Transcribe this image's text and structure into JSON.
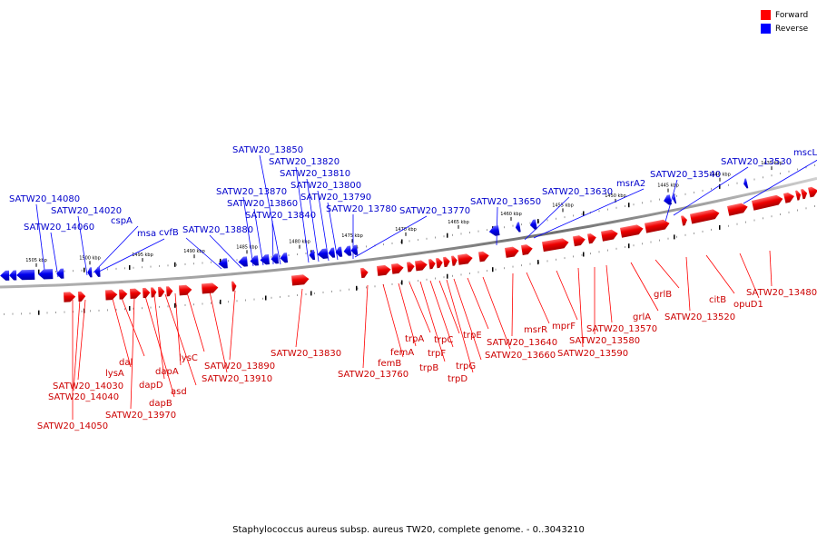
{
  "legend": {
    "forward": {
      "label": "Forward",
      "color": "#ff0000"
    },
    "reverse": {
      "label": "Reverse",
      "color": "#0000ff"
    }
  },
  "caption": "Staphylococcus aureus subsp. aureus TW20, complete genome. - 0..3043210",
  "ticks": [
    "1505 kbp",
    "1500 kbp",
    "1495 kbp",
    "1490 kbp",
    "1485 kbp",
    "1480 kbp",
    "1475 kbp",
    "1470 kbp",
    "1465 kbp",
    "1460 kbp",
    "1455 kbp",
    "1450 kbp",
    "1445 kbp",
    "1440 kbp",
    "1435 kbp"
  ],
  "reverse_labels": [
    "SATW20_14080",
    "SATW20_14060",
    "SATW20_14020",
    "cspA",
    "msa",
    "cvfB",
    "SATW20_13880",
    "SATW20_13870",
    "SATW20_13860",
    "SATW20_13840",
    "SATW20_13850",
    "SATW20_13820",
    "SATW20_13810",
    "SATW20_13800",
    "SATW20_13790",
    "SATW20_13780",
    "SATW20_13770",
    "SATW20_13650",
    "SATW20_13630",
    "msrA2",
    "SATW20_13540",
    "SATW20_13530",
    "mscL"
  ],
  "forward_labels": [
    "SATW20_14050",
    "SATW20_14040",
    "SATW20_14030",
    "lysA",
    "dal",
    "SATW20_13970",
    "dapB",
    "dapD",
    "asd",
    "dapA",
    "lysC",
    "SATW20_13910",
    "SATW20_13890",
    "SATW20_13830",
    "SATW20_13760",
    "femB",
    "femA",
    "trpA",
    "trpB",
    "trpF",
    "trpC",
    "trpD",
    "trpG",
    "trpE",
    "SATW20_13660",
    "SATW20_13640",
    "msrR",
    "mprF",
    "SATW20_13590",
    "SATW20_13580",
    "SATW20_13570",
    "grlA",
    "grlB",
    "SATW20_13520",
    "citB",
    "opuD1",
    "SATW20_13480"
  ]
}
